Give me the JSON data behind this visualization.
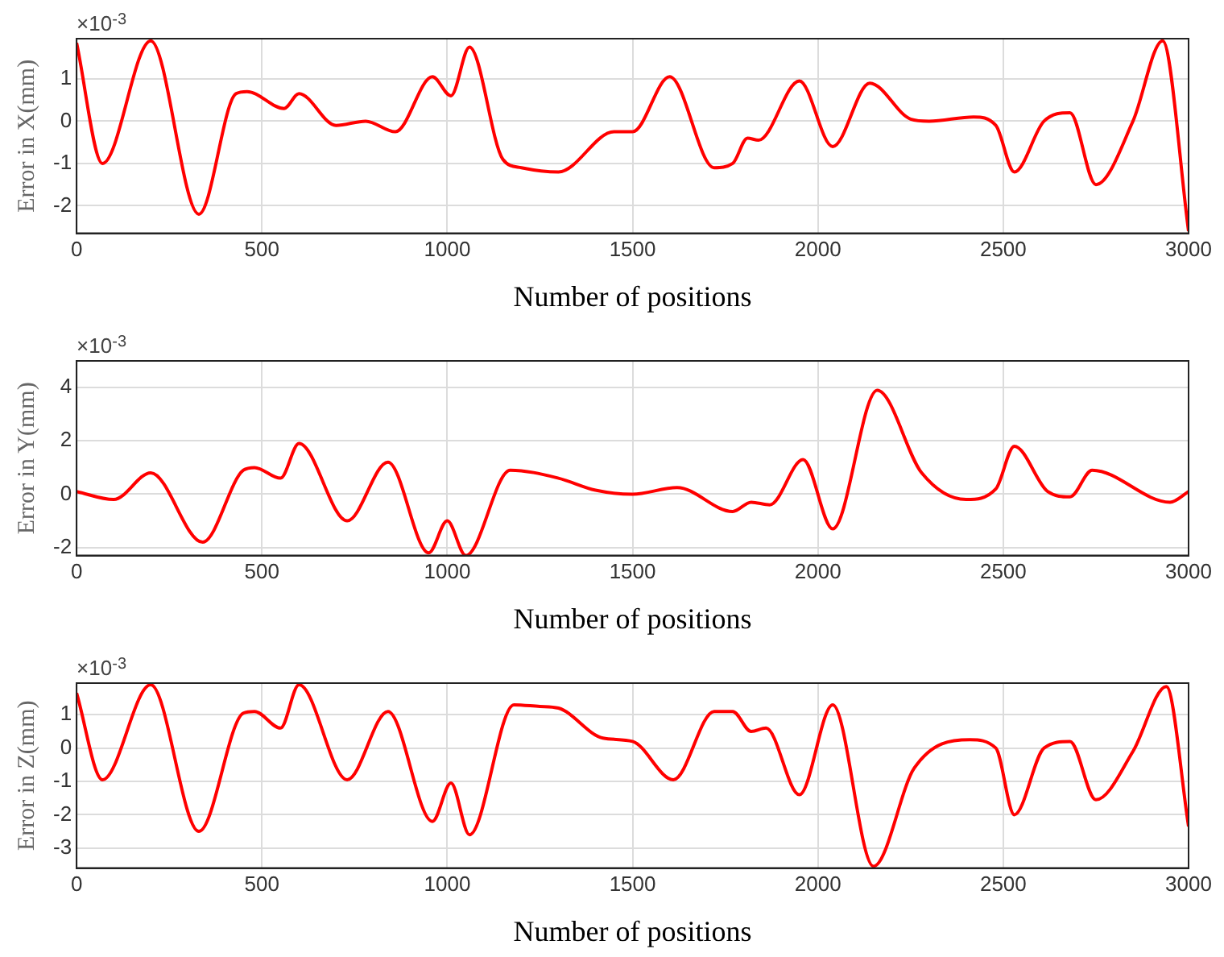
{
  "chart_data": [
    {
      "type": "line",
      "xlabel": "Number of positions",
      "ylabel": "Error in X(mm)",
      "annotations": [
        "×10$^{-3}$"
      ],
      "xlim": [
        0,
        3000
      ],
      "xticks": [
        0,
        500,
        1000,
        1500,
        2000,
        2500,
        3000
      ],
      "ylim": [
        -2.65,
        1.95
      ],
      "yticks": [
        -2,
        -1,
        0,
        1
      ],
      "grid": true,
      "legend": false,
      "marker": "none",
      "series": [
        {
          "color": "#ff0000",
          "x": [
            0,
            70,
            200,
            330,
            430,
            460,
            560,
            600,
            700,
            780,
            860,
            960,
            1010,
            1060,
            1150,
            1200,
            1300,
            1450,
            1500,
            1600,
            1720,
            1770,
            1810,
            1840,
            1950,
            2040,
            2140,
            2250,
            2300,
            2420,
            2480,
            2530,
            2610,
            2680,
            2750,
            2850,
            2930,
            3000
          ],
          "values": [
            1.85,
            -1.0,
            1.9,
            -2.2,
            0.65,
            0.7,
            0.3,
            0.65,
            -0.1,
            0.0,
            -0.25,
            1.05,
            0.6,
            1.75,
            -0.9,
            -1.1,
            -1.2,
            -0.25,
            -0.25,
            1.05,
            -1.1,
            -1.0,
            -0.4,
            -0.45,
            0.95,
            -0.6,
            0.9,
            0.05,
            0.0,
            0.1,
            -0.1,
            -1.2,
            0.0,
            0.2,
            -1.5,
            0.0,
            1.9,
            -2.6
          ]
        }
      ]
    },
    {
      "type": "line",
      "xlabel": "Number of positions",
      "ylabel": "Error in Y(mm)",
      "annotations": [
        "×10$^{-3}$"
      ],
      "xlim": [
        0,
        3000
      ],
      "xticks": [
        0,
        500,
        1000,
        1500,
        2000,
        2500,
        3000
      ],
      "ylim": [
        -2.3,
        5
      ],
      "yticks": [
        -2,
        0,
        2,
        4
      ],
      "grid": true,
      "legend": false,
      "marker": "none",
      "series": [
        {
          "color": "#ff0000",
          "x": [
            0,
            100,
            200,
            340,
            450,
            480,
            550,
            600,
            730,
            840,
            950,
            1000,
            1050,
            1170,
            1300,
            1400,
            1500,
            1620,
            1770,
            1820,
            1870,
            1960,
            2040,
            2160,
            2280,
            2400,
            2480,
            2530,
            2620,
            2680,
            2740,
            2950,
            3000
          ],
          "values": [
            0.1,
            -0.2,
            0.8,
            -1.8,
            0.9,
            1.0,
            0.6,
            1.9,
            -1.0,
            1.2,
            -2.2,
            -1.0,
            -2.3,
            0.9,
            0.6,
            0.15,
            0.0,
            0.25,
            -0.65,
            -0.3,
            -0.4,
            1.3,
            -1.3,
            3.9,
            0.8,
            -0.2,
            0.2,
            1.8,
            0.1,
            -0.1,
            0.9,
            -0.3,
            0.1
          ]
        }
      ]
    },
    {
      "type": "line",
      "xlabel": "Number of positions",
      "ylabel": "Error in Z(mm)",
      "annotations": [
        "×10$^{-3}$"
      ],
      "xlim": [
        0,
        3000
      ],
      "xticks": [
        0,
        500,
        1000,
        1500,
        2000,
        2500,
        3000
      ],
      "ylim": [
        -3.6,
        1.95
      ],
      "yticks": [
        -3,
        -2,
        -1,
        0,
        1
      ],
      "grid": true,
      "legend": false,
      "marker": "none",
      "series": [
        {
          "color": "#ff0000",
          "x": [
            0,
            70,
            200,
            330,
            450,
            480,
            550,
            600,
            730,
            840,
            960,
            1010,
            1060,
            1180,
            1250,
            1300,
            1420,
            1500,
            1610,
            1720,
            1770,
            1820,
            1860,
            1950,
            2040,
            2150,
            2260,
            2410,
            2480,
            2530,
            2610,
            2680,
            2750,
            2850,
            2940,
            3000
          ],
          "values": [
            1.65,
            -0.95,
            1.9,
            -2.5,
            1.05,
            1.1,
            0.6,
            1.9,
            -0.95,
            1.1,
            -2.2,
            -1.05,
            -2.6,
            1.3,
            1.25,
            1.2,
            0.3,
            0.2,
            -0.95,
            1.1,
            1.1,
            0.5,
            0.6,
            -1.4,
            1.3,
            -3.55,
            -0.6,
            0.25,
            0.0,
            -2.0,
            0.0,
            0.2,
            -1.55,
            -0.1,
            1.85,
            -2.35
          ]
        }
      ]
    }
  ]
}
